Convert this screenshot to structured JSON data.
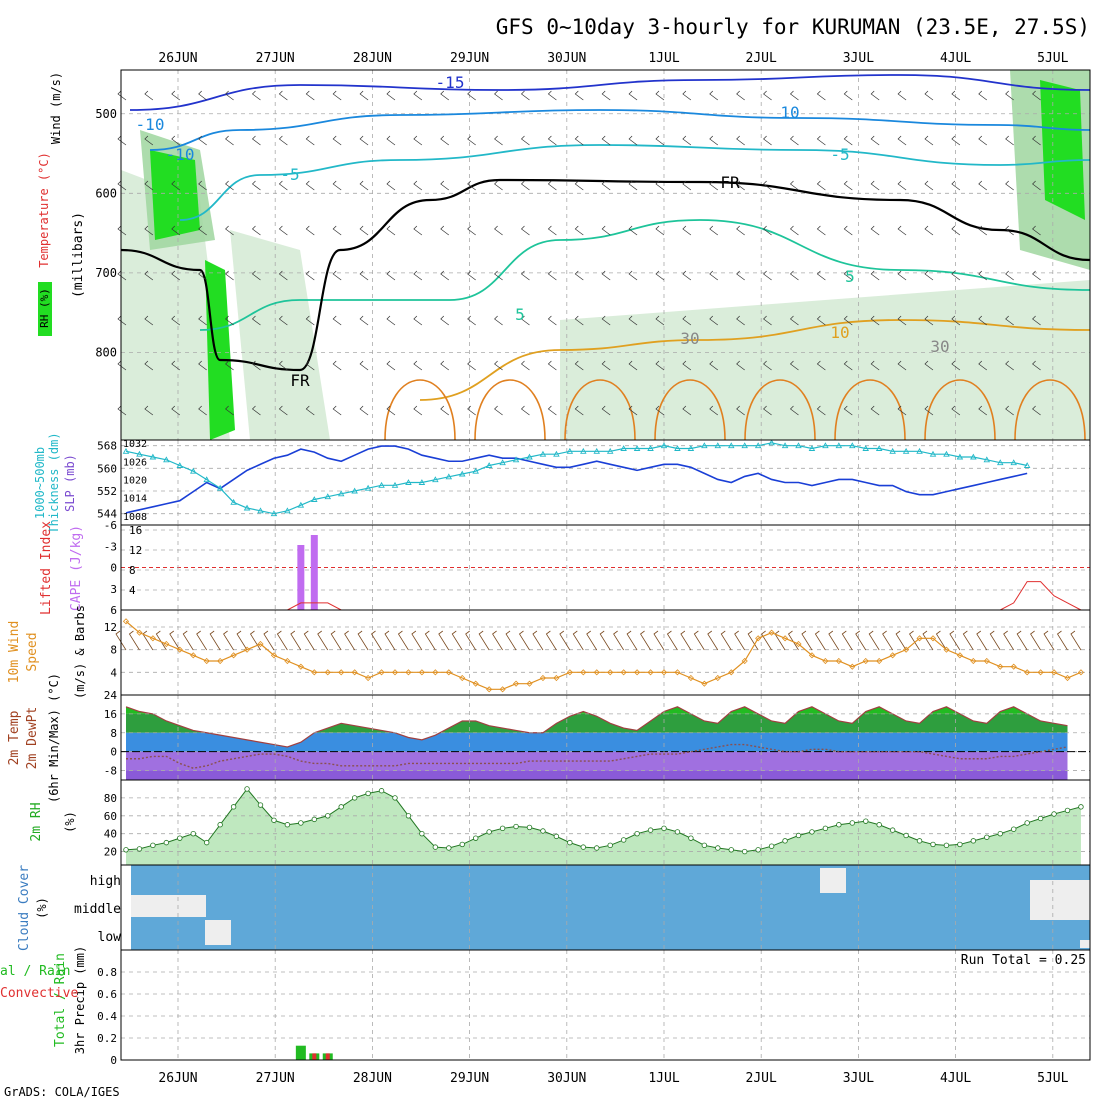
{
  "title": "GFS 0~10day 3-hourly for KURUMAN (23.5E, 27.5S)",
  "footer": "GrADS: COLA/IGES",
  "dates": [
    "26JUN",
    "27JUN",
    "28JUN",
    "29JUN",
    "30JUN",
    "1JUL",
    "2JUL",
    "3JUL",
    "4JUL",
    "5JUL"
  ],
  "colors": {
    "grid": "#aaaaaa",
    "rh_light": "#d4ead4",
    "rh_mid": "#9fd69f",
    "rh_high": "#22dd22",
    "slp": "#1a3fd6",
    "thickness": "#22b8c8",
    "cape": "#c06cf0",
    "lifted": "#e03030",
    "wind": "#e09020",
    "barb": "#7a4a20",
    "temp_warm": "#22bb22",
    "temp_cool": "#3a8ee0",
    "temp_cold": "#8a5ad8",
    "rh2m": "#44cc44",
    "cloud": "#5fa8d8",
    "precip_total": "#22bb22",
    "precip_conv": "#e03030"
  },
  "chart_data": [
    {
      "type": "heatmap",
      "name": "upper_air",
      "ylabel": "(millibars)",
      "side_labels": [
        "Wind (m/s)",
        "Temperature (°C)",
        "RH (%)"
      ],
      "y_ticks": [
        500,
        600,
        700,
        800
      ],
      "ylim": [
        910,
        445
      ],
      "contour_labels": [
        "-15",
        "-10",
        "-10",
        "-5",
        "-5",
        "5",
        "5",
        "10",
        "10",
        "30",
        "30",
        "FR",
        "FR"
      ]
    },
    {
      "type": "line",
      "name": "slp_thickness",
      "ylabels": [
        "1000~500mb",
        "Thickness (dm)",
        "SLP (mb)"
      ],
      "left_ticks": [
        544,
        552,
        560,
        568
      ],
      "right_ticks": [
        1008,
        1014,
        1020,
        1026,
        1032
      ],
      "series": [
        {
          "name": "SLP (mb)",
          "values": [
            1009,
            1010,
            1011,
            1012,
            1013,
            1016,
            1019,
            1017,
            1020,
            1023,
            1025,
            1027,
            1028,
            1030,
            1029,
            1027,
            1026,
            1028,
            1030,
            1031,
            1031,
            1030,
            1028,
            1027,
            1026,
            1026,
            1027,
            1028,
            1027,
            1027,
            1026,
            1025,
            1024,
            1024,
            1025,
            1026,
            1025,
            1024,
            1023,
            1024,
            1025,
            1025,
            1024,
            1022,
            1020,
            1019,
            1021,
            1022,
            1020,
            1019,
            1019,
            1018,
            1019,
            1020,
            1020,
            1019,
            1018,
            1018,
            1016,
            1015,
            1015,
            1016,
            1017,
            1018,
            1019,
            1020,
            1021,
            1022
          ]
        },
        {
          "name": "Thickness (dm)",
          "values": [
            566,
            565,
            564,
            563,
            561,
            559,
            556,
            553,
            548,
            546,
            545,
            544,
            545,
            547,
            549,
            550,
            551,
            552,
            553,
            554,
            554,
            555,
            555,
            556,
            557,
            558,
            559,
            561,
            562,
            563,
            564,
            565,
            565,
            566,
            566,
            566,
            566,
            567,
            567,
            567,
            568,
            567,
            567,
            568,
            568,
            568,
            568,
            568,
            569,
            568,
            568,
            567,
            568,
            568,
            568,
            567,
            567,
            566,
            566,
            566,
            565,
            565,
            564,
            564,
            563,
            562,
            562,
            561
          ]
        }
      ]
    },
    {
      "type": "bar",
      "name": "cape_lifted",
      "ylabels": [
        "Lifted Index",
        "CAPE (J/kg)"
      ],
      "left_ticks": [
        "-6",
        "-3",
        "0",
        "3",
        "6"
      ],
      "right_ticks": [
        4,
        8,
        12,
        16
      ],
      "cape_values": [
        0,
        0,
        0,
        0,
        0,
        0,
        0,
        0,
        0,
        0,
        0,
        0,
        0,
        13,
        15,
        0,
        0,
        0,
        0,
        0,
        0,
        0,
        0,
        0,
        0,
        0,
        0,
        0,
        0,
        0,
        0,
        0,
        0,
        0,
        0,
        0,
        0,
        0,
        0,
        0,
        0,
        0,
        0,
        0,
        0,
        0,
        0,
        0,
        0,
        0,
        0,
        0,
        0,
        0,
        0,
        0,
        0,
        0,
        0,
        0,
        0,
        0,
        0,
        0,
        0,
        0,
        0,
        0,
        0,
        0,
        0,
        0
      ],
      "lifted_index": [
        6,
        6,
        6,
        6,
        6,
        6,
        6,
        6,
        6,
        6,
        6,
        6,
        6,
        5,
        5,
        5,
        6,
        6,
        6,
        6,
        6,
        6,
        6,
        6,
        6,
        6,
        6,
        6,
        6,
        6,
        6,
        6,
        6,
        6,
        6,
        6,
        6,
        6,
        6,
        6,
        6,
        6,
        6,
        6,
        6,
        6,
        6,
        6,
        6,
        6,
        6,
        6,
        6,
        6,
        6,
        6,
        6,
        6,
        6,
        6,
        6,
        6,
        6,
        6,
        6,
        6,
        5,
        2,
        2,
        4,
        5,
        6
      ]
    },
    {
      "type": "line",
      "name": "wind10m",
      "ylabels": [
        "10m Wind",
        "Speed",
        "(m/s) & Barbs"
      ],
      "y_ticks": [
        4,
        8,
        12
      ],
      "values": [
        13,
        11,
        10,
        9,
        8,
        7,
        6,
        6,
        7,
        8,
        9,
        7,
        6,
        5,
        4,
        4,
        4,
        4,
        3,
        4,
        4,
        4,
        4,
        4,
        4,
        3,
        2,
        1,
        1,
        2,
        2,
        3,
        3,
        4,
        4,
        4,
        4,
        4,
        4,
        4,
        4,
        4,
        3,
        2,
        3,
        4,
        6,
        10,
        11,
        10,
        9,
        7,
        6,
        6,
        5,
        6,
        6,
        7,
        8,
        10,
        10,
        8,
        7,
        6,
        6,
        5,
        5,
        4,
        4,
        4,
        3,
        4
      ]
    },
    {
      "type": "area",
      "name": "temp2m",
      "ylabels": [
        "2m Temp",
        "2m DewPt",
        "(6hr Min/Max) (°C)"
      ],
      "y_ticks": [
        -8,
        0,
        8,
        16,
        24
      ],
      "series": [
        {
          "name": "2m Temp",
          "values": [
            19,
            17,
            16,
            13,
            11,
            9,
            8,
            7,
            6,
            5,
            4,
            3,
            2,
            4,
            8,
            10,
            12,
            11,
            10,
            9,
            8,
            6,
            5,
            7,
            10,
            13,
            13,
            11,
            10,
            9,
            8,
            8,
            12,
            15,
            17,
            15,
            12,
            10,
            9,
            13,
            17,
            19,
            16,
            13,
            12,
            17,
            19,
            16,
            13,
            12,
            17,
            19,
            16,
            13,
            12,
            17,
            19,
            16,
            13,
            12,
            17,
            19,
            16,
            13,
            12,
            17,
            19,
            16,
            13,
            12,
            11
          ]
        },
        {
          "name": "2m DewPt",
          "values": [
            -3,
            -3,
            -2,
            -2,
            -5,
            -7,
            -6,
            -4,
            -3,
            -2,
            -1,
            -1,
            -2,
            -4,
            -5,
            -5,
            -6,
            -6,
            -6,
            -6,
            -6,
            -5,
            -5,
            -5,
            -5,
            -5,
            -5,
            -5,
            -5,
            -5,
            -4,
            -4,
            -4,
            -4,
            -4,
            -4,
            -4,
            -3,
            -2,
            -1,
            -1,
            -1,
            0,
            1,
            2,
            3,
            3,
            2,
            1,
            0,
            0,
            1,
            1,
            0,
            0,
            0,
            0,
            0,
            0,
            0,
            -1,
            -2,
            -3,
            -3,
            -3,
            -2,
            -2,
            -1,
            0,
            1,
            2
          ]
        }
      ]
    },
    {
      "type": "area",
      "name": "rh2m",
      "ylabels": [
        "2m RH",
        "(%)"
      ],
      "y_ticks": [
        20,
        40,
        60,
        80
      ],
      "values": [
        22,
        23,
        27,
        30,
        35,
        40,
        30,
        50,
        70,
        90,
        72,
        55,
        50,
        52,
        56,
        60,
        70,
        80,
        85,
        88,
        80,
        60,
        40,
        25,
        24,
        28,
        35,
        42,
        46,
        48,
        47,
        43,
        37,
        30,
        25,
        24,
        27,
        33,
        40,
        44,
        46,
        42,
        35,
        27,
        24,
        22,
        20,
        22,
        26,
        32,
        38,
        42,
        46,
        50,
        52,
        54,
        50,
        44,
        38,
        32,
        28,
        27,
        28,
        32,
        36,
        40,
        45,
        52,
        57,
        62,
        66,
        70
      ]
    },
    {
      "type": "bar",
      "name": "cloud_cover",
      "ylabels": [
        "Cloud Cover",
        "(%)"
      ],
      "row_labels": [
        "high",
        "middle",
        "low"
      ]
    },
    {
      "type": "bar",
      "name": "precip",
      "ylabels": [
        "Total / Rain",
        "Convective",
        "3hr Precip (mm)"
      ],
      "y_ticks": [
        0,
        0.2,
        0.4,
        0.6,
        0.8
      ],
      "run_total": "Run Total = 0.25",
      "series": [
        {
          "name": "Total / Rain",
          "values": [
            0,
            0,
            0,
            0,
            0,
            0,
            0,
            0,
            0,
            0,
            0,
            0,
            0,
            0.13,
            0.06,
            0.06,
            0,
            0,
            0,
            0,
            0,
            0,
            0,
            0,
            0,
            0,
            0,
            0,
            0,
            0,
            0,
            0,
            0,
            0,
            0,
            0,
            0,
            0,
            0,
            0,
            0,
            0,
            0,
            0,
            0,
            0,
            0,
            0,
            0,
            0,
            0,
            0,
            0,
            0,
            0,
            0,
            0,
            0,
            0,
            0,
            0,
            0,
            0,
            0,
            0,
            0,
            0,
            0,
            0,
            0,
            0,
            0
          ]
        },
        {
          "name": "Convective",
          "values": [
            0,
            0,
            0,
            0,
            0,
            0,
            0,
            0,
            0,
            0,
            0,
            0,
            0,
            0,
            0.06,
            0.06,
            0,
            0,
            0,
            0,
            0,
            0,
            0,
            0,
            0,
            0,
            0,
            0,
            0,
            0,
            0,
            0,
            0,
            0,
            0,
            0,
            0,
            0,
            0,
            0,
            0,
            0,
            0,
            0,
            0,
            0,
            0,
            0,
            0,
            0,
            0,
            0,
            0,
            0,
            0,
            0,
            0,
            0,
            0,
            0,
            0,
            0,
            0,
            0,
            0,
            0,
            0,
            0,
            0,
            0,
            0,
            0
          ]
        }
      ]
    }
  ]
}
